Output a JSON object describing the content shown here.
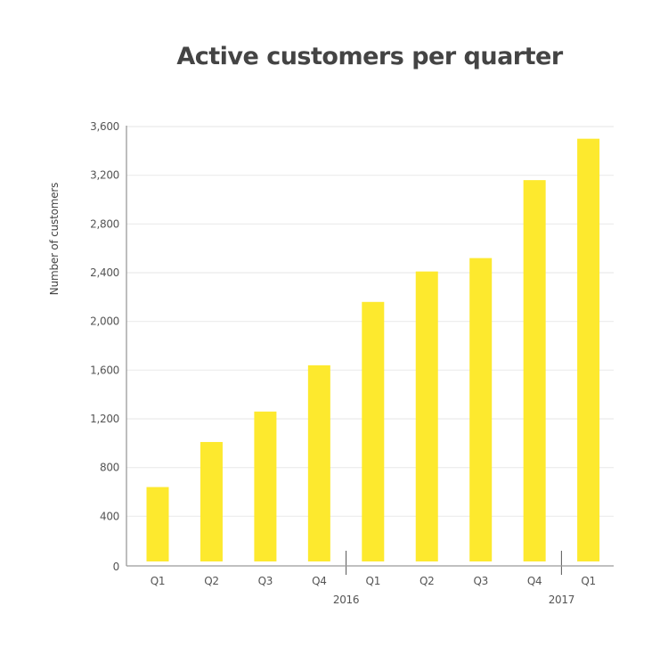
{
  "chart_data": {
    "type": "bar",
    "title": "Active customers per quarter",
    "xlabel": "",
    "ylabel": "Number of customers",
    "ylim": [
      0,
      3600
    ],
    "yticks": [
      0,
      400,
      800,
      1200,
      1600,
      2000,
      2400,
      2800,
      3200,
      3600
    ],
    "ytick_labels": [
      "0",
      "400",
      "800",
      "1,200",
      "1,600",
      "2,000",
      "2,400",
      "2,800",
      "3,200",
      "3,600"
    ],
    "grid": true,
    "categories": [
      "Q1",
      "Q2",
      "Q3",
      "Q4",
      "Q1",
      "Q2",
      "Q3",
      "Q4",
      "Q1"
    ],
    "values": [
      640,
      1010,
      1260,
      1640,
      2160,
      2410,
      2520,
      3160,
      3500
    ],
    "year_groups": [
      {
        "label": "2016",
        "separator_after_index": 3
      },
      {
        "label": "2017",
        "separator_after_index": 7
      }
    ],
    "colors": {
      "bar": "#FDE92E",
      "grid": "#EBEBEB",
      "axis": "#9A9A9A",
      "text": "#555555",
      "title": "#444444"
    }
  }
}
